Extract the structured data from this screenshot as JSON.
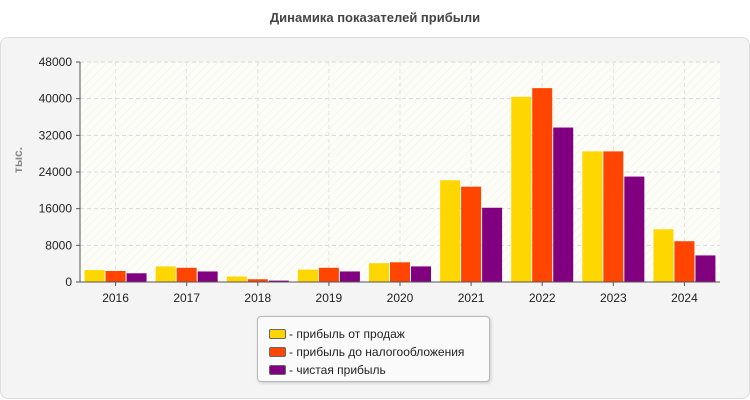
{
  "chart_data": {
    "type": "bar",
    "title": "Динамика показателей прибыли",
    "ylabel": "тыс.",
    "xlabel": "",
    "categories": [
      "2016",
      "2017",
      "2018",
      "2019",
      "2020",
      "2021",
      "2022",
      "2023",
      "2024"
    ],
    "series": [
      {
        "name": "- прибыль от продаж",
        "color": "#ffd700",
        "values": [
          2600,
          3400,
          1200,
          2700,
          4100,
          22200,
          40400,
          28500,
          11500
        ]
      },
      {
        "name": "- прибыль до налогообложения",
        "color": "#ff4500",
        "values": [
          2400,
          3100,
          600,
          3100,
          4300,
          20800,
          42300,
          28500,
          8900
        ]
      },
      {
        "name": "- чистая прибыль",
        "color": "#800080",
        "values": [
          1900,
          2300,
          300,
          2300,
          3400,
          16200,
          33700,
          23000,
          5800
        ]
      }
    ],
    "ylim": [
      0,
      48000
    ],
    "yticks": [
      "0",
      "8000",
      "16000",
      "24000",
      "32000",
      "40000",
      "48000"
    ],
    "grid": true,
    "legend_position": "bottom"
  }
}
